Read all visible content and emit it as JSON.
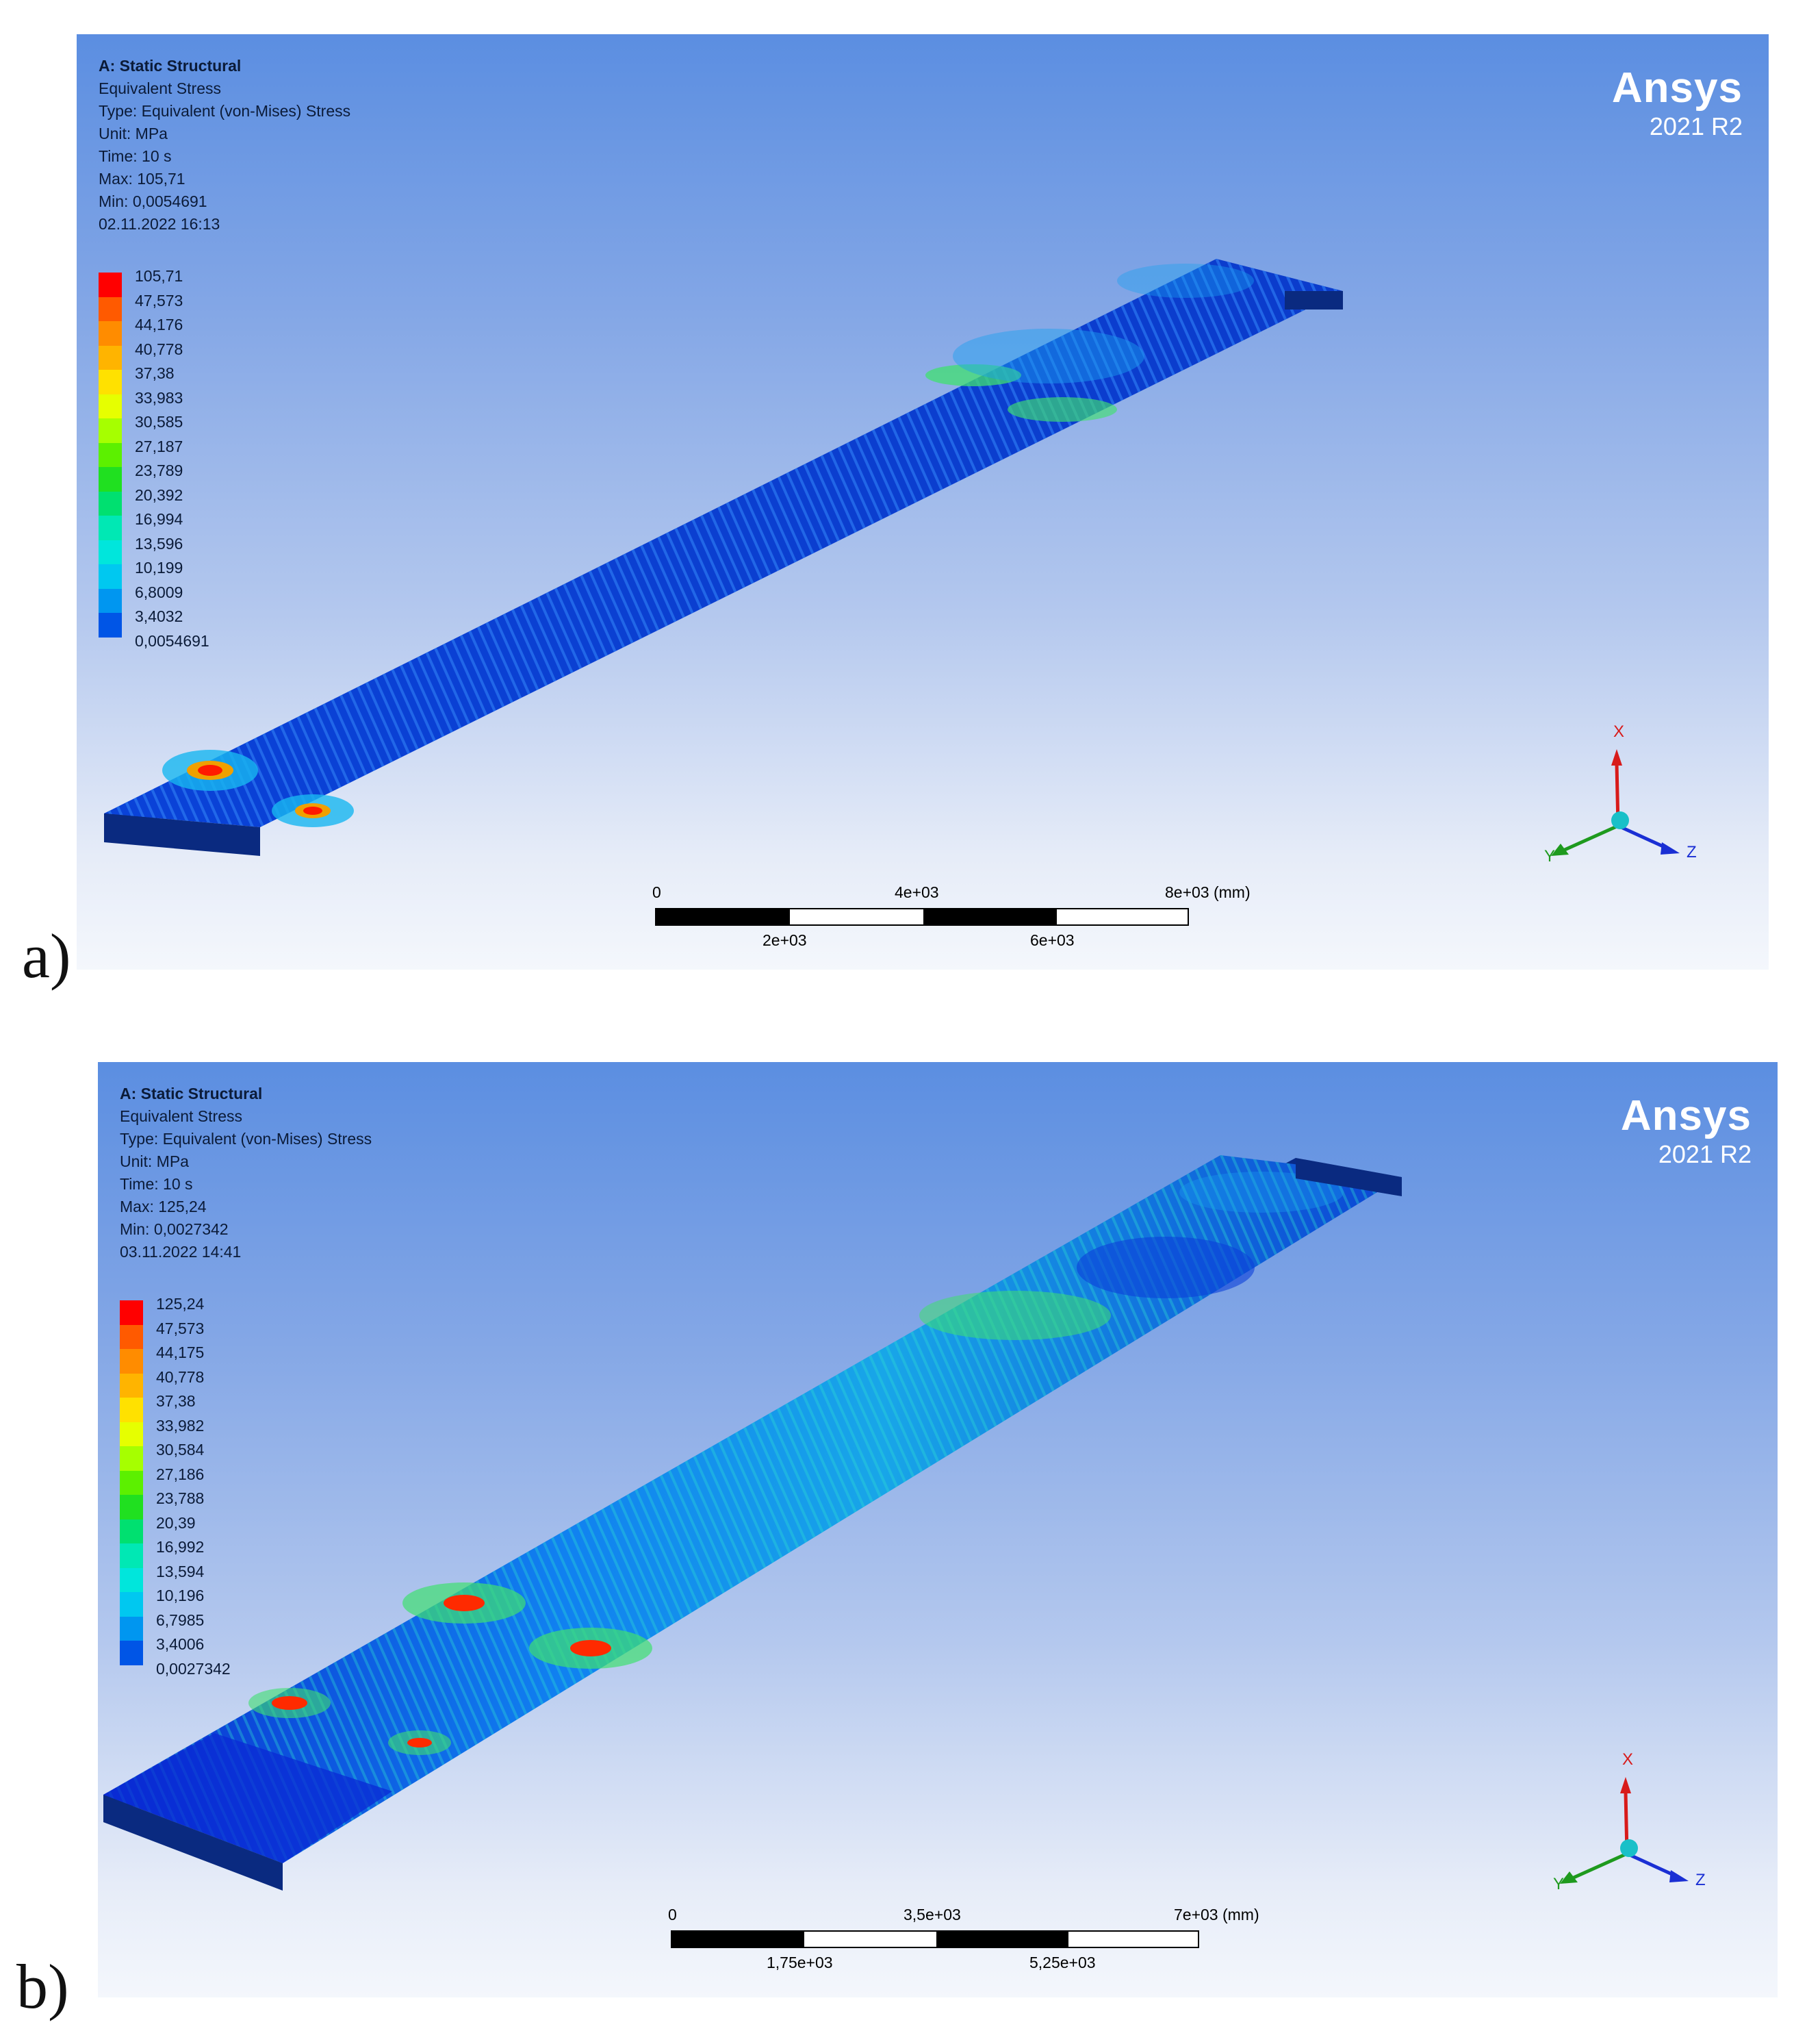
{
  "panels": [
    {
      "id": "a",
      "label": "a)",
      "info": {
        "title": "A: Static Structural",
        "result": "Equivalent Stress",
        "type": "Type: Equivalent (von-Mises) Stress",
        "unit": "Unit: MPa",
        "time": "Time: 10 s",
        "max": "Max: 105,71",
        "min": "Min: 0,0054691",
        "date": "02.11.2022 16:13"
      },
      "legend": [
        "105,71",
        "47,573",
        "44,176",
        "40,778",
        "37,38",
        "33,983",
        "30,585",
        "27,187",
        "23,789",
        "20,392",
        "16,994",
        "13,596",
        "10,199",
        "6,8009",
        "3,4032",
        "0,0054691"
      ],
      "scale": {
        "top": [
          "0",
          "4e+03",
          "8e+03 (mm)"
        ],
        "bottom": [
          "2e+03",
          "6e+03"
        ]
      }
    },
    {
      "id": "b",
      "label": "b)",
      "info": {
        "title": "A: Static Structural",
        "result": "Equivalent Stress",
        "type": "Type: Equivalent (von-Mises) Stress",
        "unit": "Unit: MPa",
        "time": "Time: 10 s",
        "max": "Max: 125,24",
        "min": "Min: 0,0027342",
        "date": "03.11.2022 14:41"
      },
      "legend": [
        "125,24",
        "47,573",
        "44,175",
        "40,778",
        "37,38",
        "33,982",
        "30,584",
        "27,186",
        "23,788",
        "20,39",
        "16,992",
        "13,594",
        "10,196",
        "6,7985",
        "3,4006",
        "0,0027342"
      ],
      "scale": {
        "top": [
          "0",
          "3,5e+03",
          "7e+03 (mm)"
        ],
        "bottom": [
          "1,75e+03",
          "5,25e+03"
        ]
      }
    }
  ],
  "brand": {
    "name": "Ansys",
    "version": "2021 R2"
  },
  "triad": {
    "x": "X",
    "y": "Y",
    "z": "Z",
    "x_color": "#d81b1b",
    "y_color": "#1e9a1e",
    "z_color": "#1a2fd4"
  },
  "legend_colors": [
    "#ff0000",
    "#ff5a00",
    "#ff8c00",
    "#ffb400",
    "#ffe100",
    "#e6ff00",
    "#a6ff00",
    "#5cf000",
    "#20e020",
    "#00e070",
    "#00e8b4",
    "#00e6dc",
    "#00c8f0",
    "#0096f0",
    "#0055e6",
    "#0000dc"
  ]
}
